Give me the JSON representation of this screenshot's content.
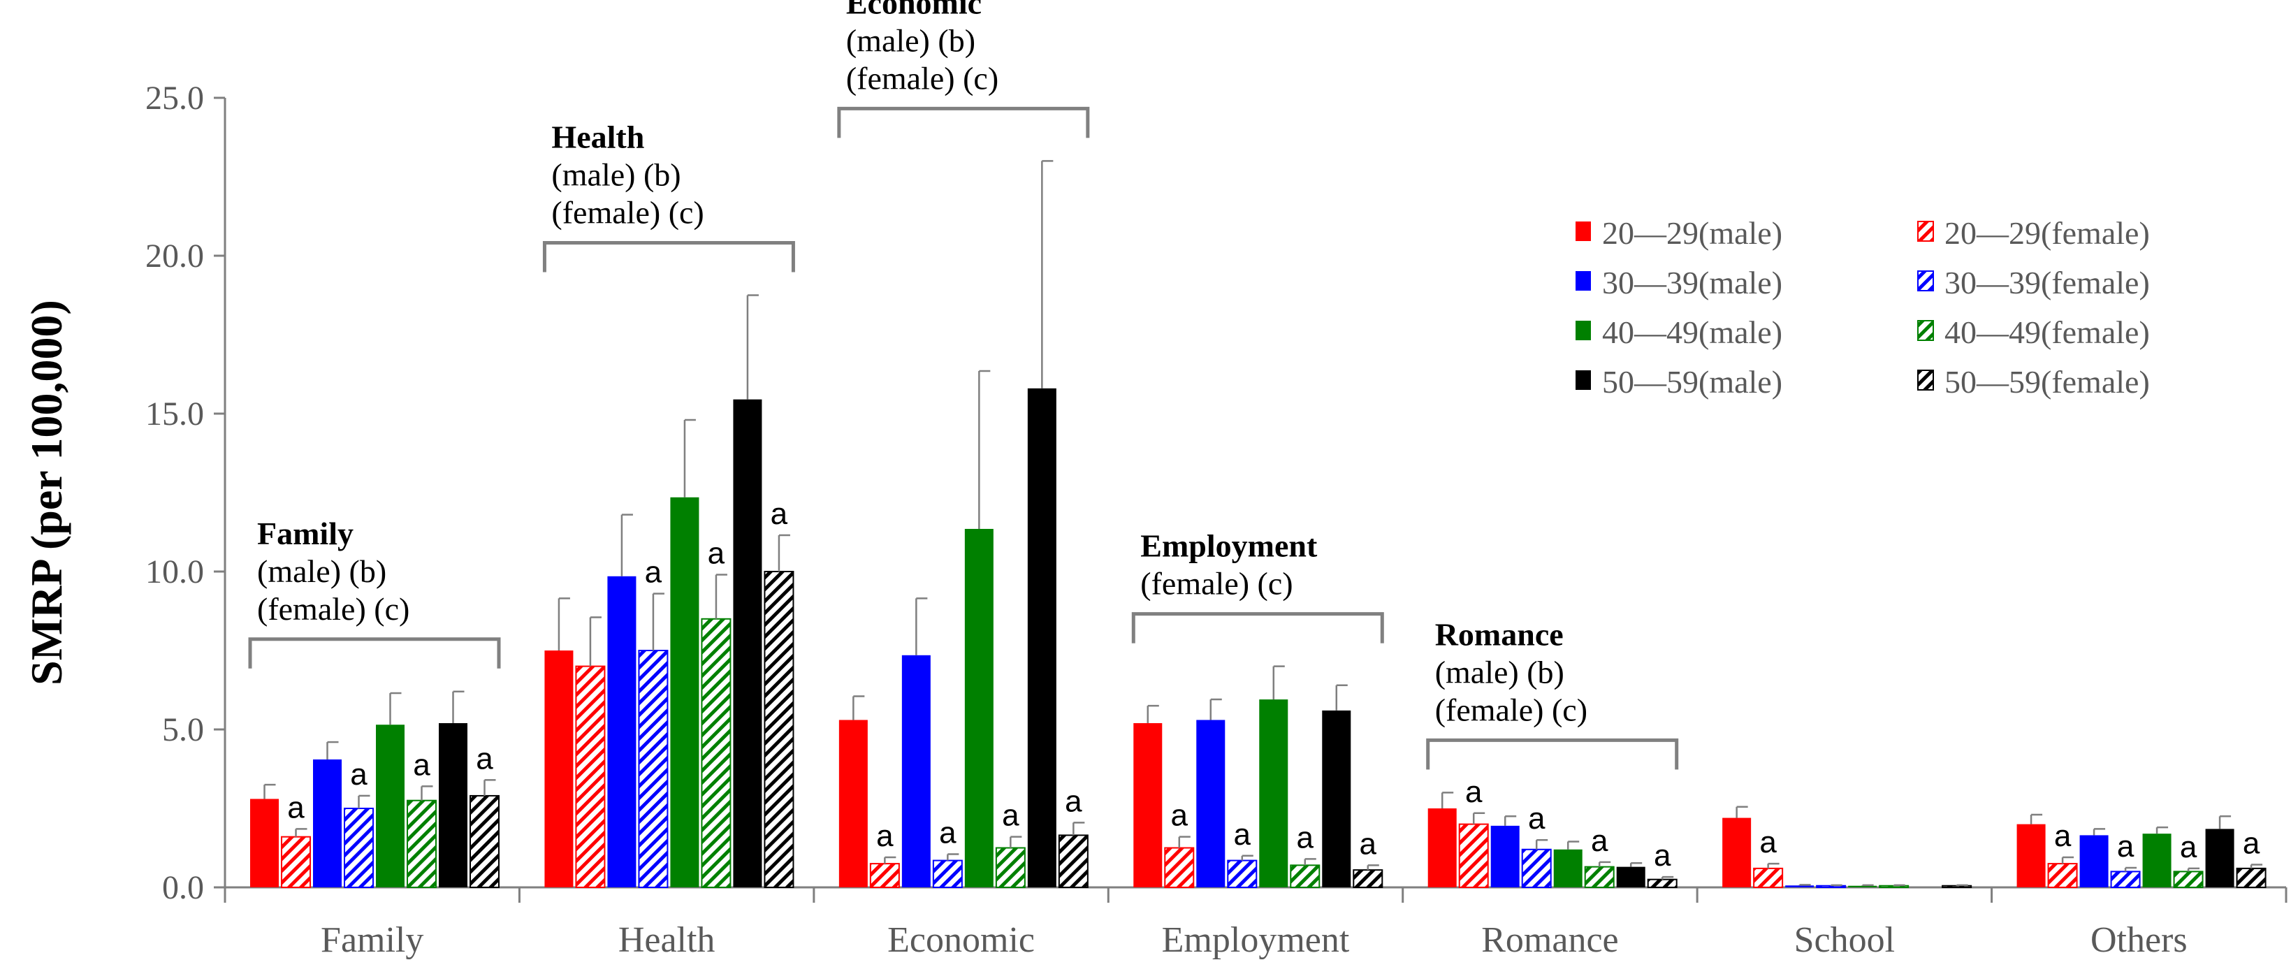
{
  "colors": {
    "c20": "#ff0000",
    "c30": "#0000ff",
    "c40": "#008000",
    "c50": "#000000",
    "axis": "#7f7f7f",
    "bracket": "#808080"
  },
  "chart_data": {
    "type": "bar",
    "title": "",
    "xlabel": "",
    "ylabel": "SMRP (per 100,000)",
    "ylim": [
      0,
      25
    ],
    "yticks": [
      "0.0",
      "5.0",
      "10.0",
      "15.0",
      "20.0",
      "25.0"
    ],
    "categories": [
      "Family",
      "Health",
      "Economic",
      "Employment",
      "Romance",
      "School",
      "Others"
    ],
    "series": [
      {
        "name": "20－29(male)",
        "legend": "20—29(male)",
        "age": "20",
        "sex": "male",
        "values": [
          2.8,
          7.5,
          5.3,
          5.2,
          2.5,
          2.2,
          2.0
        ],
        "errors": [
          0.45,
          1.65,
          0.75,
          0.55,
          0.5,
          0.35,
          0.3
        ],
        "sig": [
          "",
          "",
          "",
          "",
          "",
          "",
          ""
        ]
      },
      {
        "name": "20－29(female)",
        "legend": "20—29(female)",
        "age": "20",
        "sex": "female",
        "values": [
          1.6,
          7.0,
          0.75,
          1.25,
          2.0,
          0.6,
          0.75
        ],
        "errors": [
          0.25,
          1.55,
          0.2,
          0.35,
          0.35,
          0.15,
          0.2
        ],
        "sig": [
          "a",
          "",
          "a",
          "a",
          "a",
          "a",
          "a"
        ]
      },
      {
        "name": "30－39(male)",
        "legend": "30—39(male)",
        "age": "30",
        "sex": "male",
        "values": [
          4.05,
          9.85,
          7.35,
          5.3,
          1.95,
          0.06,
          1.65
        ],
        "errors": [
          0.55,
          1.95,
          1.8,
          0.65,
          0.3,
          0.02,
          0.2
        ],
        "sig": [
          "",
          "",
          "",
          "",
          "",
          "",
          ""
        ]
      },
      {
        "name": "30－39(female)",
        "legend": "30—39(female)",
        "age": "30",
        "sex": "female",
        "values": [
          2.5,
          7.5,
          0.85,
          0.85,
          1.2,
          0.05,
          0.5
        ],
        "errors": [
          0.4,
          1.8,
          0.2,
          0.15,
          0.3,
          0.02,
          0.12
        ],
        "sig": [
          "a",
          "a",
          "a",
          "a",
          "a",
          "",
          "a"
        ]
      },
      {
        "name": "40－49(male)",
        "legend": "40—49(male)",
        "age": "40",
        "sex": "male",
        "values": [
          5.15,
          12.35,
          11.35,
          5.95,
          1.2,
          0.05,
          1.7
        ],
        "errors": [
          1.0,
          2.45,
          5.0,
          1.05,
          0.25,
          0.02,
          0.2
        ],
        "sig": [
          "",
          "",
          "",
          "",
          "",
          "",
          ""
        ]
      },
      {
        "name": "40－49(female)",
        "legend": "40—49(female)",
        "age": "40",
        "sex": "female",
        "values": [
          2.75,
          8.5,
          1.25,
          0.7,
          0.65,
          0.05,
          0.5
        ],
        "errors": [
          0.45,
          1.4,
          0.35,
          0.2,
          0.15,
          0.02,
          0.1
        ],
        "sig": [
          "a",
          "a",
          "a",
          "a",
          "a",
          "",
          "a"
        ]
      },
      {
        "name": "50－59(male)",
        "legend": "50—59(male)",
        "age": "50",
        "sex": "male",
        "values": [
          5.2,
          15.45,
          15.8,
          5.6,
          0.65,
          0.0,
          1.85
        ],
        "errors": [
          1.0,
          3.3,
          7.2,
          0.8,
          0.12,
          0.0,
          0.4
        ],
        "sig": [
          "",
          "",
          "",
          "",
          "",
          "",
          ""
        ]
      },
      {
        "name": "50－59(female)",
        "legend": "50—59(female)",
        "age": "50",
        "sex": "female",
        "values": [
          2.9,
          10.0,
          1.65,
          0.55,
          0.25,
          0.05,
          0.6
        ],
        "errors": [
          0.5,
          1.15,
          0.4,
          0.15,
          0.08,
          0.02,
          0.12
        ],
        "sig": [
          "a",
          "a",
          "a",
          "a",
          "a",
          "",
          "a"
        ]
      }
    ],
    "annotations": [
      {
        "category": "Family",
        "title": "Family",
        "lines": [
          "(male) (b)",
          "(female) (c)"
        ]
      },
      {
        "category": "Health",
        "title": "Health",
        "lines": [
          "(male) (b)",
          "(female) (c)"
        ]
      },
      {
        "category": "Economic",
        "title": "Economic",
        "lines": [
          "(male) (b)",
          "(female) (c)"
        ]
      },
      {
        "category": "Employment",
        "title": "Employment",
        "lines": [
          "(female) (c)"
        ]
      },
      {
        "category": "Romance",
        "title": "Romance",
        "lines": [
          "(male) (b)",
          "(female) (c)"
        ]
      }
    ],
    "legend_position": "top-right",
    "grid": false
  }
}
